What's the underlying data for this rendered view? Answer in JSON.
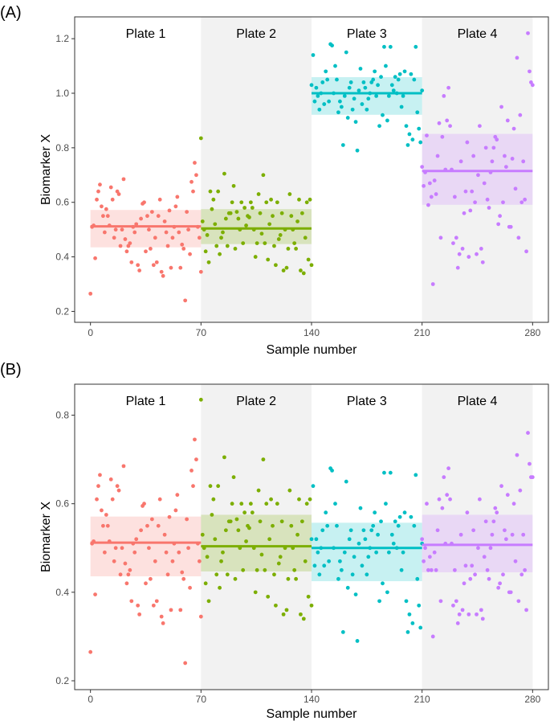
{
  "figure": {
    "panel_labels": [
      "(A)",
      "(B)"
    ]
  },
  "chart_data": [
    {
      "type": "scatter",
      "panel_label": "(A)",
      "xlabel": "Sample number",
      "ylabel": "Biomarker X",
      "xlim": [
        -10,
        290
      ],
      "ylim": [
        0.16,
        1.28
      ],
      "xticks": [
        0,
        70,
        140,
        210,
        280
      ],
      "xtick_labels": [
        "0",
        "70",
        "140",
        "210",
        "280"
      ],
      "yticks": [
        0.2,
        0.4,
        0.6,
        0.8,
        1.0,
        1.2
      ],
      "ytick_labels": [
        "0.2",
        "0.4",
        "0.6",
        "0.8",
        "1.0",
        "1.2"
      ],
      "grid": false,
      "plates": [
        {
          "name": "Plate 1",
          "x_range": [
            0,
            70
          ],
          "shaded": false,
          "color": "#F8766D",
          "mean": 0.512,
          "band": [
            0.435,
            0.572
          ],
          "points": [
            0.265,
            0.51,
            0.515,
            0.395,
            0.61,
            0.64,
            0.665,
            0.585,
            0.55,
            0.49,
            0.575,
            0.55,
            0.515,
            0.655,
            0.61,
            0.47,
            0.5,
            0.64,
            0.63,
            0.44,
            0.5,
            0.685,
            0.465,
            0.42,
            0.44,
            0.45,
            0.38,
            0.51,
            0.49,
            0.52,
            0.37,
            0.35,
            0.54,
            0.595,
            0.6,
            0.42,
            0.55,
            0.5,
            0.43,
            0.565,
            0.37,
            0.47,
            0.38,
            0.55,
            0.61,
            0.345,
            0.33,
            0.53,
            0.49,
            0.44,
            0.57,
            0.36,
            0.47,
            0.51,
            0.585,
            0.62,
            0.49,
            0.36,
            0.445,
            0.43,
            0.24,
            0.565,
            0.5,
            0.41,
            0.675,
            0.64,
            0.745,
            0.7,
            0.51,
            0.47,
            0.345
          ]
        },
        {
          "name": "Plate 2",
          "x_range": [
            70,
            140
          ],
          "shaded": true,
          "color": "#7CAE00",
          "mean": 0.504,
          "band": [
            0.447,
            0.575
          ],
          "points": [
            0.835,
            0.53,
            0.5,
            0.42,
            0.48,
            0.38,
            0.64,
            0.575,
            0.61,
            0.52,
            0.44,
            0.64,
            0.41,
            0.47,
            0.49,
            0.705,
            0.54,
            0.44,
            0.56,
            0.56,
            0.6,
            0.66,
            0.43,
            0.565,
            0.54,
            0.5,
            0.6,
            0.45,
            0.58,
            0.515,
            0.55,
            0.545,
            0.6,
            0.58,
            0.5,
            0.4,
            0.45,
            0.63,
            0.56,
            0.485,
            0.7,
            0.45,
            0.6,
            0.39,
            0.52,
            0.61,
            0.55,
            0.44,
            0.37,
            0.6,
            0.465,
            0.48,
            0.56,
            0.35,
            0.5,
            0.36,
            0.43,
            0.63,
            0.55,
            0.5,
            0.45,
            0.43,
            0.53,
            0.61,
            0.35,
            0.56,
            0.34,
            0.47,
            0.6,
            0.39,
            0.61,
            0.37
          ]
        },
        {
          "name": "Plate 3",
          "x_range": [
            140,
            210
          ],
          "shaded": false,
          "color": "#00BFC4",
          "mean": 1.0,
          "band": [
            0.921,
            1.059
          ],
          "points": [
            1.03,
            1.14,
            0.97,
            1.02,
            0.99,
            0.94,
            1.0,
            1.04,
            0.96,
            1.08,
            1.05,
            0.97,
            1.18,
            1.175,
            1.0,
            1.1,
            1.05,
            0.93,
            0.97,
            0.95,
            0.81,
            0.99,
            1.15,
            0.91,
            1.02,
            1.04,
            0.94,
            0.98,
            0.895,
            0.79,
            1.01,
            1.09,
            0.96,
            1.04,
            1.02,
            0.94,
            0.98,
            1.0,
            1.04,
            1.05,
            1.08,
            0.99,
            1.03,
            0.88,
            1.06,
            0.92,
            1.17,
            1.1,
            0.9,
            0.99,
            1.17,
            1.03,
            1.01,
            1.06,
            1.0,
            1.05,
            1.07,
            0.95,
            0.99,
            1.08,
            0.88,
            0.81,
            0.85,
            1.07,
            0.83,
            1.05,
            1.17,
            0.93,
            0.87,
            0.82,
            1.01
          ]
        },
        {
          "name": "Plate 4",
          "x_range": [
            210,
            280
          ],
          "shaded": true,
          "color": "#C77CFF",
          "mean": 0.715,
          "band": [
            0.591,
            0.851
          ],
          "points": [
            0.73,
            0.66,
            0.71,
            0.845,
            0.59,
            0.67,
            0.62,
            0.3,
            0.68,
            0.63,
            0.77,
            0.89,
            0.47,
            0.84,
            0.99,
            0.72,
            0.9,
            1.02,
            0.88,
            0.72,
            0.45,
            0.62,
            0.47,
            0.36,
            0.41,
            0.75,
            0.43,
            0.56,
            0.64,
            0.82,
            0.4,
            0.57,
            0.64,
            0.77,
            0.6,
            0.41,
            0.7,
            0.88,
            0.43,
            0.38,
            0.67,
            0.8,
            0.61,
            0.58,
            0.71,
            0.75,
            0.8,
            0.84,
            0.83,
            0.52,
            0.55,
            0.95,
            0.6,
            0.77,
            0.73,
            0.9,
            0.51,
            0.51,
            0.76,
            0.87,
            0.65,
            1.13,
            0.47,
            0.92,
            0.6,
            0.75,
            0.61,
            0.42,
            1.22,
            1.08,
            1.04,
            1.03
          ]
        }
      ]
    },
    {
      "type": "scatter",
      "panel_label": "(B)",
      "xlabel": "Sample number",
      "ylabel": "Biomarker X",
      "xlim": [
        -10,
        290
      ],
      "ylim": [
        0.18,
        0.87
      ],
      "xticks": [
        0,
        70,
        140,
        210,
        280
      ],
      "xtick_labels": [
        "0",
        "70",
        "140",
        "210",
        "280"
      ],
      "yticks": [
        0.2,
        0.4,
        0.6,
        0.8
      ],
      "ytick_labels": [
        "0.2",
        "0.4",
        "0.6",
        "0.8"
      ],
      "grid": false,
      "plates": [
        {
          "name": "Plate 1",
          "x_range": [
            0,
            70
          ],
          "shaded": false,
          "color": "#F8766D",
          "mean": 0.512,
          "band": [
            0.436,
            0.571
          ],
          "points": [
            0.265,
            0.51,
            0.515,
            0.395,
            0.61,
            0.64,
            0.665,
            0.585,
            0.55,
            0.49,
            0.575,
            0.55,
            0.515,
            0.655,
            0.61,
            0.47,
            0.5,
            0.64,
            0.63,
            0.44,
            0.5,
            0.685,
            0.465,
            0.42,
            0.44,
            0.45,
            0.38,
            0.51,
            0.49,
            0.52,
            0.37,
            0.35,
            0.54,
            0.595,
            0.6,
            0.42,
            0.55,
            0.5,
            0.43,
            0.565,
            0.37,
            0.47,
            0.38,
            0.55,
            0.61,
            0.345,
            0.33,
            0.53,
            0.49,
            0.44,
            0.57,
            0.36,
            0.47,
            0.51,
            0.585,
            0.62,
            0.49,
            0.36,
            0.445,
            0.43,
            0.24,
            0.565,
            0.5,
            0.41,
            0.675,
            0.64,
            0.745,
            0.7,
            0.51,
            0.47,
            0.345
          ]
        },
        {
          "name": "Plate 2",
          "x_range": [
            70,
            140
          ],
          "shaded": true,
          "color": "#7CAE00",
          "mean": 0.504,
          "band": [
            0.447,
            0.575
          ],
          "points": [
            0.835,
            0.53,
            0.5,
            0.42,
            0.48,
            0.38,
            0.64,
            0.575,
            0.61,
            0.52,
            0.44,
            0.64,
            0.41,
            0.47,
            0.49,
            0.705,
            0.54,
            0.44,
            0.56,
            0.56,
            0.6,
            0.66,
            0.43,
            0.565,
            0.54,
            0.5,
            0.6,
            0.45,
            0.58,
            0.515,
            0.55,
            0.545,
            0.6,
            0.58,
            0.5,
            0.4,
            0.45,
            0.63,
            0.56,
            0.485,
            0.7,
            0.45,
            0.6,
            0.39,
            0.52,
            0.61,
            0.55,
            0.44,
            0.37,
            0.6,
            0.465,
            0.48,
            0.56,
            0.35,
            0.5,
            0.36,
            0.43,
            0.63,
            0.55,
            0.5,
            0.45,
            0.43,
            0.53,
            0.61,
            0.35,
            0.56,
            0.34,
            0.47,
            0.6,
            0.39,
            0.61,
            0.37
          ]
        },
        {
          "name": "Plate 3",
          "x_range": [
            140,
            210
          ],
          "shaded": false,
          "color": "#00BFC4",
          "mean": 0.5,
          "band": [
            0.425,
            0.557
          ],
          "points": [
            0.52,
            0.64,
            0.46,
            0.52,
            0.49,
            0.44,
            0.5,
            0.54,
            0.46,
            0.58,
            0.55,
            0.47,
            0.68,
            0.675,
            0.5,
            0.6,
            0.55,
            0.43,
            0.47,
            0.45,
            0.31,
            0.49,
            0.65,
            0.41,
            0.52,
            0.54,
            0.44,
            0.48,
            0.395,
            0.29,
            0.51,
            0.59,
            0.46,
            0.54,
            0.52,
            0.44,
            0.48,
            0.5,
            0.54,
            0.55,
            0.58,
            0.49,
            0.53,
            0.38,
            0.56,
            0.42,
            0.67,
            0.6,
            0.4,
            0.49,
            0.67,
            0.53,
            0.51,
            0.56,
            0.5,
            0.55,
            0.57,
            0.45,
            0.49,
            0.58,
            0.38,
            0.31,
            0.35,
            0.57,
            0.33,
            0.55,
            0.665,
            0.43,
            0.37,
            0.32,
            0.51
          ]
        },
        {
          "name": "Plate 4",
          "x_range": [
            210,
            280
          ],
          "shaded": true,
          "color": "#C77CFF",
          "mean": 0.507,
          "band": [
            0.445,
            0.575
          ],
          "points": [
            0.52,
            0.47,
            0.5,
            0.6,
            0.45,
            0.48,
            0.45,
            0.3,
            0.49,
            0.45,
            0.54,
            0.61,
            0.38,
            0.59,
            0.66,
            0.51,
            0.62,
            0.68,
            0.61,
            0.51,
            0.37,
            0.45,
            0.38,
            0.33,
            0.35,
            0.53,
            0.36,
            0.42,
            0.46,
            0.58,
            0.35,
            0.43,
            0.46,
            0.54,
            0.44,
            0.35,
            0.5,
            0.61,
            0.36,
            0.34,
            0.48,
            0.56,
            0.45,
            0.43,
            0.5,
            0.53,
            0.56,
            0.59,
            0.58,
            0.41,
            0.42,
            0.64,
            0.44,
            0.54,
            0.52,
            0.62,
            0.4,
            0.4,
            0.53,
            0.6,
            0.47,
            0.71,
            0.38,
            0.63,
            0.44,
            0.53,
            0.45,
            0.36,
            0.76,
            0.69,
            0.66,
            0.66
          ]
        }
      ]
    }
  ]
}
